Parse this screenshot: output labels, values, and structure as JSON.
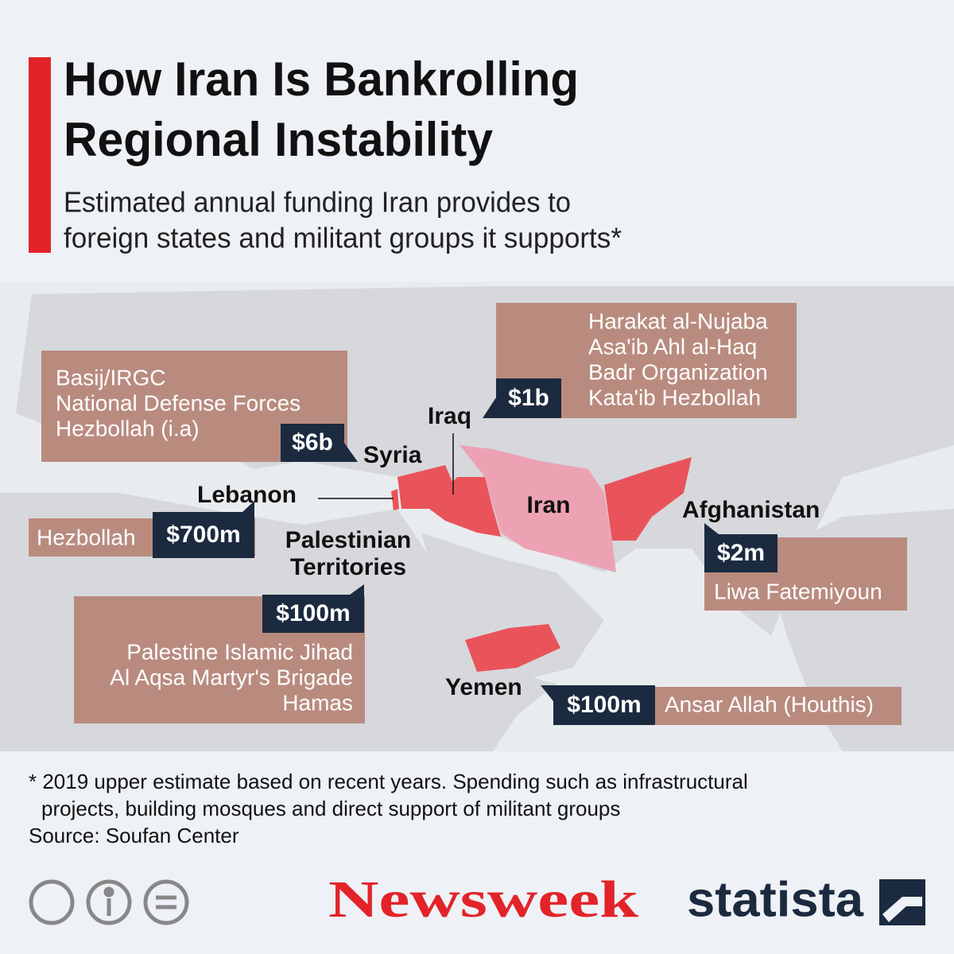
{
  "header": {
    "title_lines": [
      "How Iran Is Bankrolling",
      "Regional Instability"
    ],
    "subtitle_lines": [
      "Estimated annual funding Iran provides to",
      "foreign states and militant groups it supports*"
    ]
  },
  "regions": [
    {
      "country": "Syria",
      "amount": "$6b",
      "groups": [
        "Basij/IRGC",
        "National Defense Forces",
        "Hezbollah (i.a)"
      ]
    },
    {
      "country": "Iraq",
      "amount": "$1b",
      "groups": [
        "Harakat al-Nujaba",
        "Asa'ib Ahl al-Haq",
        "Badr Organization",
        "Kata'ib Hezbollah"
      ]
    },
    {
      "country": "Lebanon",
      "amount": "$700m",
      "groups": [
        "Hezbollah"
      ]
    },
    {
      "country": "Palestinian Territories",
      "amount": "$100m",
      "groups": [
        "Palestine Islamic Jihad",
        "Al Aqsa Martyr's Brigade",
        "Hamas"
      ]
    },
    {
      "country": "Afghanistan",
      "amount": "$2m",
      "groups": [
        "Liwa Fatemiyoun"
      ]
    },
    {
      "country": "Yemen",
      "amount": "$100m",
      "groups": [
        "Ansar Allah (Houthis)"
      ]
    },
    {
      "country": "Iran"
    }
  ],
  "footer": {
    "note_lines": [
      "* 2019 upper estimate based on recent years. Spending such as infrastructural",
      "projects, building mosques and direct support of militant groups"
    ],
    "source": "Source: Soufan Center",
    "logos": [
      "Newsweek",
      "statista"
    ]
  }
}
